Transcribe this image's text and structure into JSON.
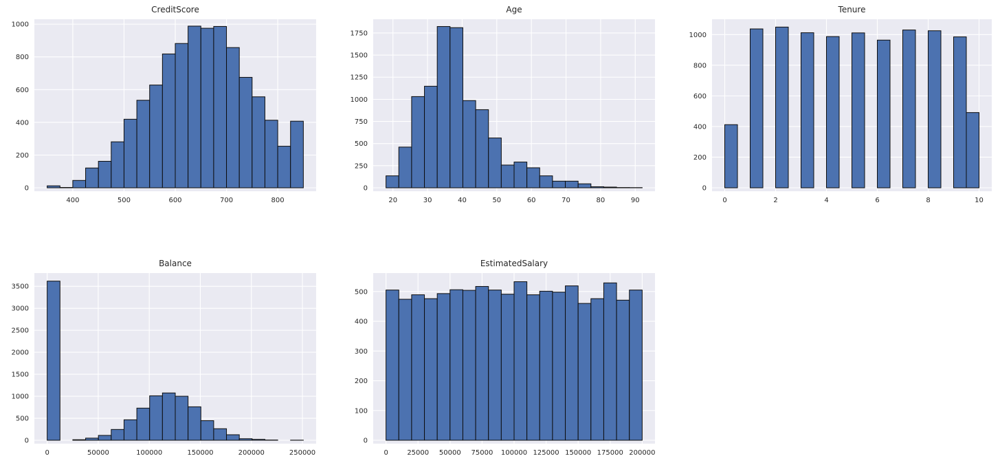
{
  "figure": {
    "background": "#ffffff",
    "plot_background": "#eaeaf2",
    "grid_color": "#ffffff",
    "bar_fill": "#4c72b0",
    "bar_edge": "#0d0d0d",
    "text_color": "#262626"
  },
  "chart_data": [
    {
      "type": "bar",
      "subtype": "histogram",
      "title": "CreditScore",
      "grid": true,
      "bin_start": 350,
      "bin_width": 25,
      "values": [
        12,
        2,
        45,
        121,
        162,
        281,
        419,
        535,
        628,
        818,
        882,
        988,
        975,
        986,
        857,
        675,
        556,
        413,
        254,
        407
      ],
      "xlim": [
        325,
        875
      ],
      "ylim": [
        0,
        1030
      ],
      "xticks": [
        400,
        500,
        600,
        700,
        800
      ],
      "yticks": [
        0,
        200,
        400,
        600,
        800,
        1000
      ]
    },
    {
      "type": "bar",
      "subtype": "histogram",
      "title": "Age",
      "grid": true,
      "bin_start": 18,
      "bin_width": 3.7,
      "values": [
        135,
        460,
        1031,
        1148,
        1823,
        1810,
        986,
        883,
        563,
        257,
        291,
        226,
        135,
        75,
        75,
        45,
        12,
        8,
        3,
        2
      ],
      "xlim": [
        14.3,
        95.7
      ],
      "ylim": [
        0,
        1905
      ],
      "xticks": [
        20,
        30,
        40,
        50,
        60,
        70,
        80,
        90
      ],
      "yticks": [
        0,
        250,
        500,
        750,
        1000,
        1250,
        1500,
        1750
      ]
    },
    {
      "type": "bar",
      "subtype": "histogram",
      "title": "Tenure",
      "grid": true,
      "bin_start": 0,
      "bin_width": 0.5,
      "values": [
        412,
        0,
        1037,
        0,
        1049,
        0,
        1012,
        0,
        987,
        0,
        1011,
        0,
        964,
        0,
        1030,
        0,
        1025,
        0,
        985,
        491
      ],
      "xlim": [
        -0.5,
        10.5
      ],
      "ylim": [
        0,
        1100
      ],
      "xticks": [
        0,
        2,
        4,
        6,
        8,
        10
      ],
      "yticks": [
        0,
        200,
        400,
        600,
        800,
        1000
      ]
    },
    {
      "type": "bar",
      "subtype": "histogram",
      "title": "Balance",
      "grid": true,
      "bin_start": 0,
      "bin_width": 12545,
      "values": [
        3617,
        0,
        12,
        48,
        110,
        245,
        465,
        730,
        1010,
        1075,
        1000,
        760,
        445,
        262,
        125,
        35,
        20,
        5,
        0,
        2
      ],
      "xlim": [
        -12545,
        263443
      ],
      "ylim": [
        0,
        3800
      ],
      "xticks": [
        0,
        50000,
        100000,
        150000,
        200000,
        250000
      ],
      "yticks": [
        0,
        500,
        1000,
        1500,
        2000,
        2500,
        3000,
        3500
      ]
    },
    {
      "type": "bar",
      "subtype": "histogram",
      "title": "EstimatedSalary",
      "grid": true,
      "bin_start": 0,
      "bin_width": 10000,
      "values": [
        505,
        474,
        489,
        476,
        493,
        506,
        504,
        517,
        505,
        491,
        533,
        489,
        501,
        498,
        519,
        460,
        476,
        529,
        471,
        505
      ],
      "xlim": [
        -10000,
        210000
      ],
      "ylim": [
        0,
        562
      ],
      "xticks": [
        0,
        25000,
        50000,
        75000,
        100000,
        125000,
        150000,
        175000,
        200000
      ],
      "yticks": [
        0,
        100,
        200,
        300,
        400,
        500
      ]
    }
  ]
}
